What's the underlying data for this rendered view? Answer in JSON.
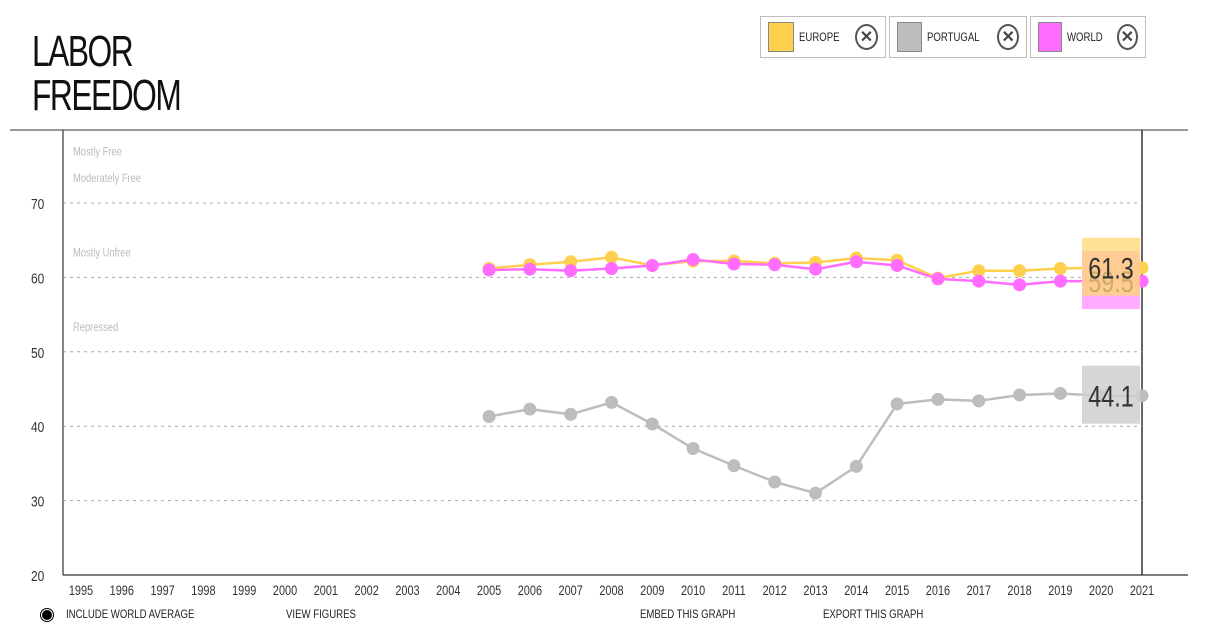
{
  "page": {
    "title_line1": "LABOR",
    "title_line2": "FREEDOM"
  },
  "legend": [
    {
      "label": "EUROPE",
      "color": "#ffd04d",
      "close_icon": "close-icon"
    },
    {
      "label": "PORTUGAL",
      "color": "#bdbdbd",
      "close_icon": "close-icon"
    },
    {
      "label": "WORLD",
      "color": "#ff6cff",
      "close_icon": "close-icon"
    }
  ],
  "footer": {
    "include_world_average": "INCLUDE WORLD AVERAGE",
    "view_figures": "VIEW FIGURES",
    "embed": "EMBED THIS GRAPH",
    "export": "EXPORT THIS GRAPH"
  },
  "chart_data": {
    "type": "line",
    "title": "LABOR FREEDOM",
    "x": [
      1995,
      1996,
      1997,
      1998,
      1999,
      2000,
      2001,
      2002,
      2003,
      2004,
      2005,
      2006,
      2007,
      2008,
      2009,
      2010,
      2011,
      2012,
      2013,
      2014,
      2015,
      2016,
      2017,
      2018,
      2019,
      2020,
      2021
    ],
    "ylim": [
      20,
      80
    ],
    "yticks": [
      20,
      30,
      40,
      50,
      60,
      70
    ],
    "grid": true,
    "bands": [
      {
        "label": "Mostly Free",
        "y": 80
      },
      {
        "label": "Moderately Free",
        "y": 70
      },
      {
        "label": "Mostly Unfree",
        "y": 60
      },
      {
        "label": "Repressed",
        "y": 50
      }
    ],
    "series": [
      {
        "name": "EUROPE",
        "color": "#ffd04d",
        "x": [
          2005,
          2006,
          2007,
          2008,
          2009,
          2010,
          2011,
          2012,
          2013,
          2014,
          2015,
          2016,
          2017,
          2018,
          2019,
          2020,
          2021
        ],
        "values": [
          61.2,
          61.7,
          62.1,
          62.7,
          61.6,
          62.2,
          62.2,
          61.9,
          62.0,
          62.6,
          62.3,
          59.9,
          60.9,
          60.9,
          61.2,
          61.3,
          61.3
        ]
      },
      {
        "name": "PORTUGAL",
        "color": "#bdbdbd",
        "x": [
          2005,
          2006,
          2007,
          2008,
          2009,
          2010,
          2011,
          2012,
          2013,
          2014,
          2015,
          2016,
          2017,
          2018,
          2019,
          2020,
          2021
        ],
        "values": [
          41.3,
          42.3,
          41.6,
          43.2,
          40.3,
          37.0,
          34.7,
          32.5,
          31.0,
          34.6,
          43.0,
          43.6,
          43.4,
          44.2,
          44.4,
          44.1,
          44.1
        ]
      },
      {
        "name": "WORLD",
        "color": "#ff6cff",
        "x": [
          2005,
          2006,
          2007,
          2008,
          2009,
          2010,
          2011,
          2012,
          2013,
          2014,
          2015,
          2016,
          2017,
          2018,
          2019,
          2020,
          2021
        ],
        "values": [
          61.0,
          61.1,
          60.9,
          61.2,
          61.6,
          62.4,
          61.8,
          61.7,
          61.1,
          62.1,
          61.6,
          59.8,
          59.5,
          59.0,
          59.5,
          59.5,
          59.5
        ]
      }
    ],
    "value_labels": [
      {
        "series": "WORLD",
        "text": "59.5",
        "color": "#ff9cff"
      },
      {
        "series": "EUROPE",
        "text": "61.3",
        "color": "#ffd773"
      },
      {
        "series": "PORTUGAL",
        "text": "44.1",
        "color": "#cfcfcf"
      }
    ]
  }
}
